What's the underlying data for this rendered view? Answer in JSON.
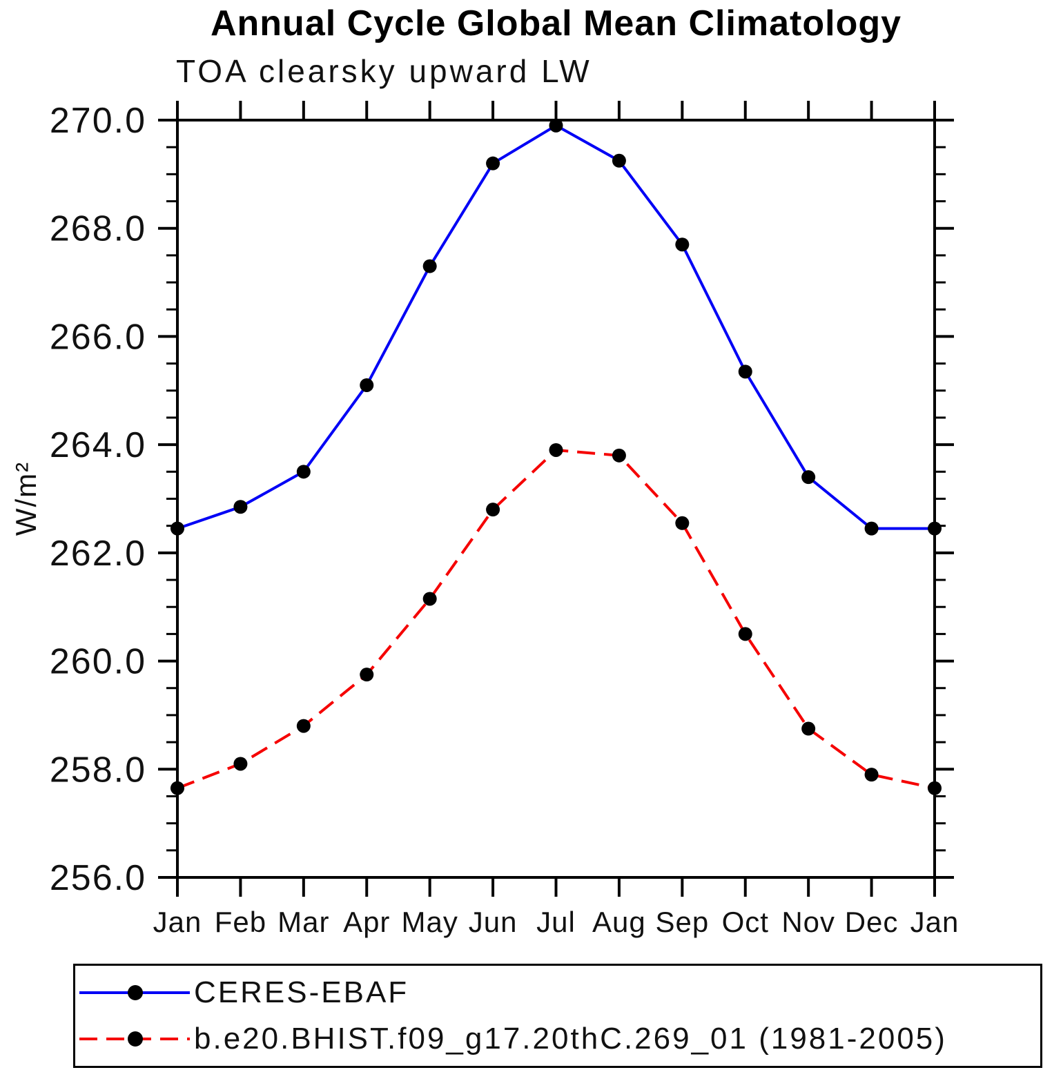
{
  "chart_data": {
    "type": "line",
    "title": "Annual Cycle Global Mean Climatology",
    "subtitle": "TOA clearsky upward LW",
    "ylabel": "W/m²",
    "xlabel": "",
    "categories": [
      "Jan",
      "Feb",
      "Mar",
      "Apr",
      "May",
      "Jun",
      "Jul",
      "Aug",
      "Sep",
      "Oct",
      "Nov",
      "Dec",
      "Jan"
    ],
    "series": [
      {
        "name": "CERES-EBAF",
        "color": "#0000f5",
        "line_style": "solid",
        "marker": "filled-circle",
        "marker_color": "#000000",
        "values": [
          262.45,
          262.85,
          263.5,
          265.1,
          267.3,
          269.2,
          269.9,
          269.25,
          267.7,
          265.35,
          263.4,
          262.45,
          262.45
        ]
      },
      {
        "name": "b.e20.BHIST.f09_g17.20thC.269_01 (1981-2005)",
        "color": "#f50000",
        "line_style": "dashed",
        "marker": "filled-circle",
        "marker_color": "#000000",
        "values": [
          257.65,
          258.1,
          258.8,
          259.75,
          261.15,
          262.8,
          263.9,
          263.8,
          262.55,
          260.5,
          258.75,
          257.9,
          257.65
        ]
      }
    ],
    "ylim": [
      256.0,
      270.0
    ],
    "ytick_major": 2.0,
    "ytick_minor": 0.5,
    "ytick_label_format": "one-decimal",
    "grid": false,
    "axis_color": "#000000",
    "legend_position": "bottom-left"
  }
}
